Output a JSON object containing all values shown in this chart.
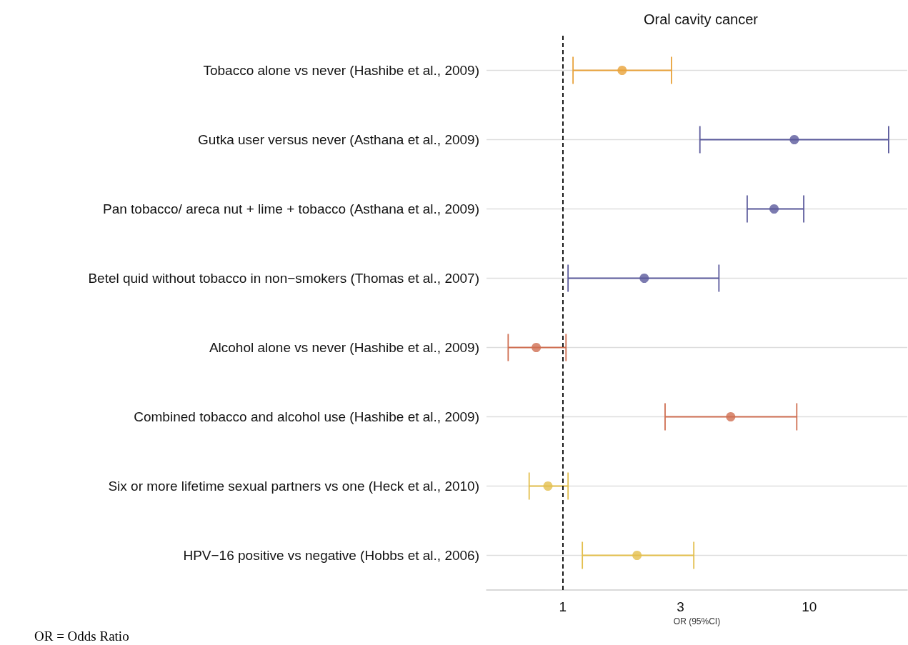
{
  "chart_data": {
    "type": "scatter",
    "title": "Oral cavity cancer",
    "xlabel": "OR (95%CI)",
    "orientation": "horizontal",
    "categories": [
      "Tobacco alone vs never (Hashibe et al., 2009)",
      "Gutka user versus never (Asthana et al., 2009)",
      "Pan tobacco/ areca nut + lime + tobacco (Asthana et al., 2009)",
      "Betel quid without tobacco in non−smokers (Thomas et al., 2007)",
      "Alcohol alone vs never (Hashibe et al., 2009)",
      "Combined tobacco and alcohol use (Hashibe et al., 2009)",
      "Six or more lifetime sexual partners vs one (Heck et al., 2010)",
      "HPV−16 positive vs negative (Hobbs et al., 2006)"
    ],
    "values": [
      1.74,
      8.7,
      7.2,
      2.14,
      0.78,
      4.8,
      0.87,
      2.0
    ],
    "errors": [
      [
        1.1,
        2.76
      ],
      [
        3.6,
        21
      ],
      [
        5.6,
        9.5
      ],
      [
        1.05,
        4.3
      ],
      [
        0.6,
        1.03
      ],
      [
        2.6,
        8.9
      ],
      [
        0.73,
        1.05
      ],
      [
        1.2,
        3.4
      ]
    ],
    "colors": [
      "#e8a23a",
      "#5b5a9c",
      "#5b5a9c",
      "#5b5a9c",
      "#cf6f52",
      "#cf6f52",
      "#e3bf4d",
      "#e3bf4d"
    ],
    "log": "x",
    "xlim": [
      0.49,
      25
    ],
    "xticks": [
      1,
      3,
      10
    ],
    "grid": "y",
    "marker": "circle",
    "ref_lines": [
      {
        "axis": "x",
        "value": 1,
        "label": null,
        "color": "#000000",
        "line_style": "dashed"
      }
    ],
    "annotations": [
      "OR = Odds Ratio"
    ]
  }
}
